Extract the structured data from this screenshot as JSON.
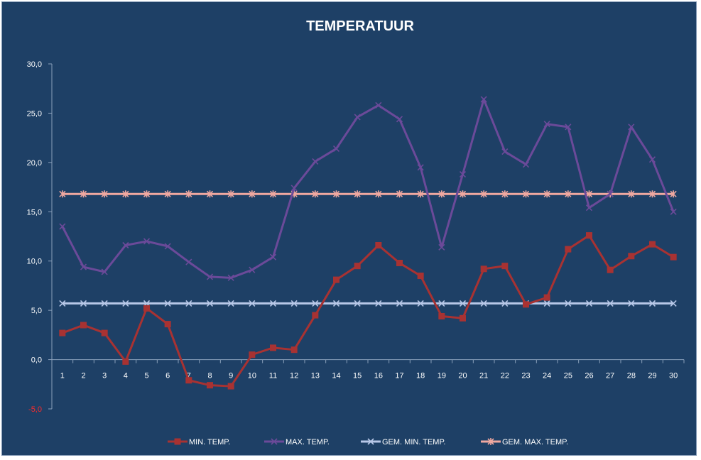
{
  "chart_data": {
    "type": "line",
    "title": "TEMPERATUUR",
    "xlabel": "",
    "ylabel": "",
    "ylim": [
      -5,
      30
    ],
    "yticks": [
      "30,0",
      "25,0",
      "20,0",
      "15,0",
      "10,0",
      "5,0",
      "0,0",
      "-5,0"
    ],
    "ytick_values": [
      30,
      25,
      20,
      15,
      10,
      5,
      0,
      -5
    ],
    "categories": [
      "1",
      "2",
      "3",
      "4",
      "5",
      "6",
      "7",
      "8",
      "9",
      "10",
      "11",
      "12",
      "13",
      "14",
      "15",
      "16",
      "17",
      "18",
      "19",
      "20",
      "21",
      "22",
      "23",
      "24",
      "25",
      "26",
      "27",
      "28",
      "29",
      "30"
    ],
    "grid": false,
    "legend_position": "bottom",
    "series": [
      {
        "name": "MIN. TEMP.",
        "color": "#a83232",
        "marker": "square",
        "values": [
          2.7,
          3.5,
          2.7,
          -0.2,
          5.2,
          3.6,
          -2.1,
          -2.6,
          -2.7,
          0.5,
          1.2,
          1.0,
          4.5,
          8.1,
          9.5,
          11.6,
          9.8,
          8.5,
          4.4,
          4.2,
          9.2,
          9.5,
          5.6,
          6.3,
          11.2,
          12.6,
          9.1,
          10.5,
          11.7,
          10.4
        ]
      },
      {
        "name": "MAX. TEMP.",
        "color": "#6b4a99",
        "marker": "x",
        "values": [
          13.5,
          9.4,
          8.9,
          11.6,
          12.0,
          11.5,
          9.9,
          8.4,
          8.3,
          9.1,
          10.4,
          17.4,
          20.1,
          21.4,
          24.6,
          25.8,
          24.4,
          19.5,
          11.4,
          18.8,
          26.4,
          21.1,
          19.8,
          23.9,
          23.6,
          15.4,
          16.8,
          23.6,
          20.3,
          15.0
        ]
      },
      {
        "name": "GEM. MIN. TEMP.",
        "color": "#b8c8e8",
        "marker": "x",
        "values": [
          5.7,
          5.7,
          5.7,
          5.7,
          5.7,
          5.7,
          5.7,
          5.7,
          5.7,
          5.7,
          5.7,
          5.7,
          5.7,
          5.7,
          5.7,
          5.7,
          5.7,
          5.7,
          5.7,
          5.7,
          5.7,
          5.7,
          5.7,
          5.7,
          5.7,
          5.7,
          5.7,
          5.7,
          5.7,
          5.7
        ]
      },
      {
        "name": "GEM. MAX. TEMP.",
        "color": "#f0a8a0",
        "marker": "asterisk",
        "values": [
          16.8,
          16.8,
          16.8,
          16.8,
          16.8,
          16.8,
          16.8,
          16.8,
          16.8,
          16.8,
          16.8,
          16.8,
          16.8,
          16.8,
          16.8,
          16.8,
          16.8,
          16.8,
          16.8,
          16.8,
          16.8,
          16.8,
          16.8,
          16.8,
          16.8,
          16.8,
          16.8,
          16.8,
          16.8,
          16.8
        ]
      }
    ]
  }
}
